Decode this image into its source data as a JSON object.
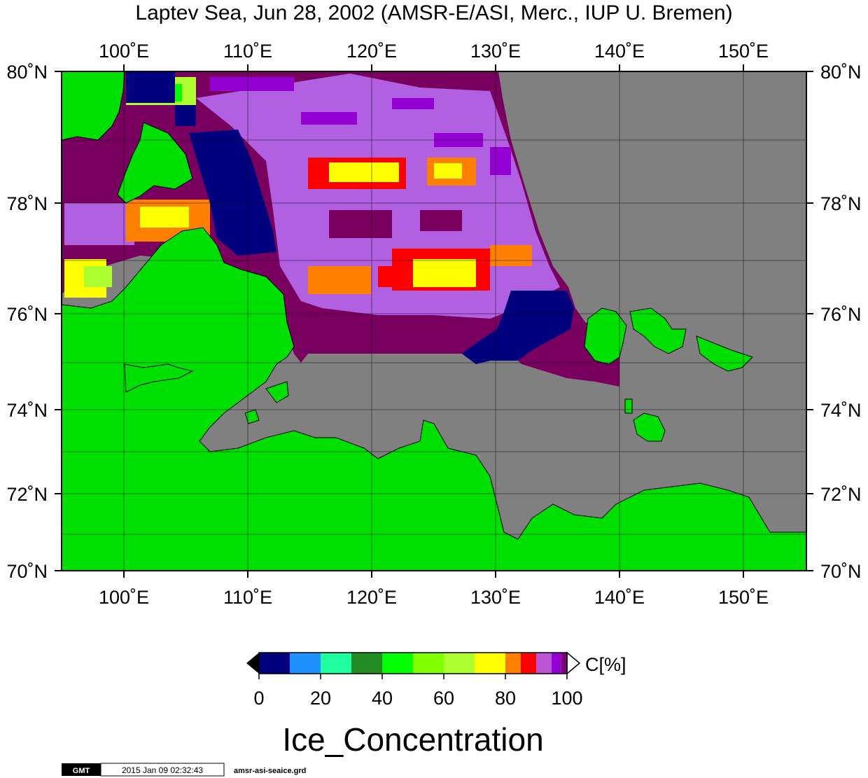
{
  "title": "Laptev Sea, Jun 28, 2002 (AMSR-E/ASI, Merc., IUP U. Bremen)",
  "lon_labels": [
    "100˚E",
    "110˚E",
    "120˚E",
    "130˚E",
    "140˚E",
    "150˚E"
  ],
  "lat_labels": [
    "80˚N",
    "78˚N",
    "76˚N",
    "74˚N",
    "72˚N",
    "70˚N"
  ],
  "colorbar": {
    "unit": "C[%]",
    "ticks": [
      "0",
      "20",
      "40",
      "60",
      "80",
      "100"
    ],
    "colors": [
      "#00007f",
      "#1e90ff",
      "#1eff9f",
      "#228b22",
      "#00ff00",
      "#7fff00",
      "#adff2f",
      "#ffff00",
      "#ff8000",
      "#ff0000",
      "#ba55d3",
      "#9400d3",
      "#7f007f"
    ]
  },
  "variable": "Ice_Concentration",
  "footer": {
    "logo": "GMT",
    "timestamp": "2015 Jan 09 02:32:43",
    "filename": "amsr-asi-seaice.grd"
  },
  "palette": {
    "land": "#00e000",
    "nodata": "#808080",
    "high_ice": "#7a0060",
    "mid_ice": "#b060e0"
  }
}
